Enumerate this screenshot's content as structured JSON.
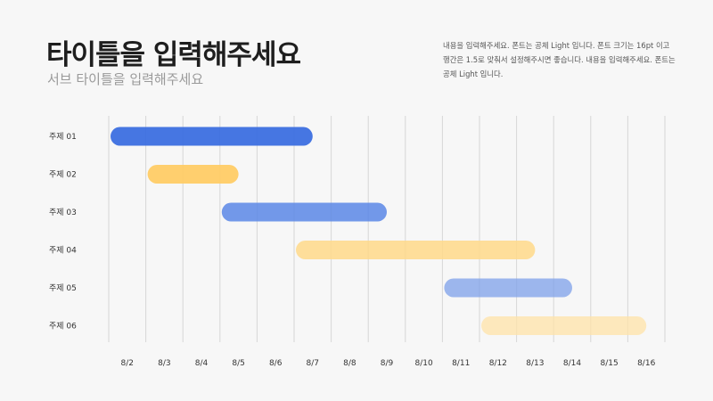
{
  "header": {
    "title": "타이틀을 입력해주세요",
    "subtitle": "서브 타이틀을 입력해주세요",
    "description": "내용을 입력해주세요. 폰트는 공체 Light 입니다. 폰트 크기는 16pt 이고 행간은 1.5로 맞춰서 설정해주시면 좋습니다. 내용을 입력해주세요. 폰트는 공체 Light 입니다."
  },
  "chart_data": {
    "type": "gantt",
    "title": "",
    "xlabel": "",
    "ylabel": "",
    "categories": [
      "8/2",
      "8/3",
      "8/4",
      "8/5",
      "8/6",
      "8/7",
      "8/8",
      "8/9",
      "8/10",
      "8/11",
      "8/12",
      "8/13",
      "8/14",
      "8/15",
      "8/16"
    ],
    "x_range": [
      "8/2",
      "8/16"
    ],
    "grid": true,
    "tasks": [
      {
        "label": "주제 01",
        "start": "8/2",
        "end": "8/7",
        "color": "#3c6fe0",
        "opacity": 0.95
      },
      {
        "label": "주제 02",
        "start": "8/3",
        "end": "8/5",
        "color": "#ffcc66",
        "opacity": 0.95
      },
      {
        "label": "주제 03",
        "start": "8/5",
        "end": "8/9",
        "color": "#5a87e6",
        "opacity": 0.85
      },
      {
        "label": "주제 04",
        "start": "8/7",
        "end": "8/13",
        "color": "#ffd98a",
        "opacity": 0.85
      },
      {
        "label": "주제 05",
        "start": "8/11",
        "end": "8/14",
        "color": "#7ea0ea",
        "opacity": 0.75
      },
      {
        "label": "주제 06",
        "start": "8/12",
        "end": "8/16",
        "color": "#ffe3a8",
        "opacity": 0.75
      }
    ]
  }
}
